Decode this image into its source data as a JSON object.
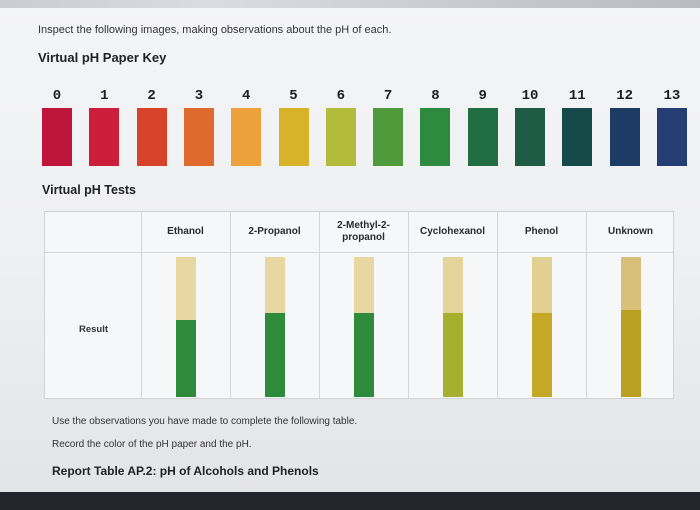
{
  "intro_text": "Inspect the following images, making observations about the pH of each.",
  "key_heading": "Virtual pH Paper Key",
  "key": [
    {
      "label": "0",
      "color": "#c0153a"
    },
    {
      "label": "1",
      "color": "#cc1e3a"
    },
    {
      "label": "2",
      "color": "#d6432a"
    },
    {
      "label": "3",
      "color": "#e06a2c"
    },
    {
      "label": "4",
      "color": "#eda13a"
    },
    {
      "label": "5",
      "color": "#d8b32a"
    },
    {
      "label": "6",
      "color": "#b3bb3a"
    },
    {
      "label": "7",
      "color": "#4f9b3c"
    },
    {
      "label": "8",
      "color": "#2e8a3e"
    },
    {
      "label": "9",
      "color": "#226e43"
    },
    {
      "label": "10",
      "color": "#1e5d43"
    },
    {
      "label": "11",
      "color": "#164a4a"
    },
    {
      "label": "12",
      "color": "#1c3c66"
    },
    {
      "label": "13",
      "color": "#243e73"
    }
  ],
  "tests_heading": "Virtual pH Tests",
  "result_label": "Result",
  "columns": [
    {
      "name": "Ethanol",
      "top_color": "#e8d7a0",
      "bottom_color": "#2f8b3c",
      "result_fraction": 0.55
    },
    {
      "name": "2-Propanol",
      "top_color": "#e8d7a0",
      "bottom_color": "#2f8b3c",
      "result_fraction": 0.6
    },
    {
      "name": "2-Methyl-2-\npropanol",
      "top_color": "#e8d7a0",
      "bottom_color": "#2f8b3c",
      "result_fraction": 0.6
    },
    {
      "name": "Cyclohexanol",
      "top_color": "#e4d49a",
      "bottom_color": "#a5b02e",
      "result_fraction": 0.6
    },
    {
      "name": "Phenol",
      "top_color": "#e2cf92",
      "bottom_color": "#c4a826",
      "result_fraction": 0.6
    },
    {
      "name": "Unknown",
      "top_color": "#d8c07a",
      "bottom_color": "#b9a022",
      "result_fraction": 0.62
    }
  ],
  "instruction_1": "Use the observations you have made to complete the following table.",
  "instruction_2": "Record the color of the pH paper and the pH.",
  "report_title": "Report Table AP.2: pH of Alcohols and Phenols"
}
